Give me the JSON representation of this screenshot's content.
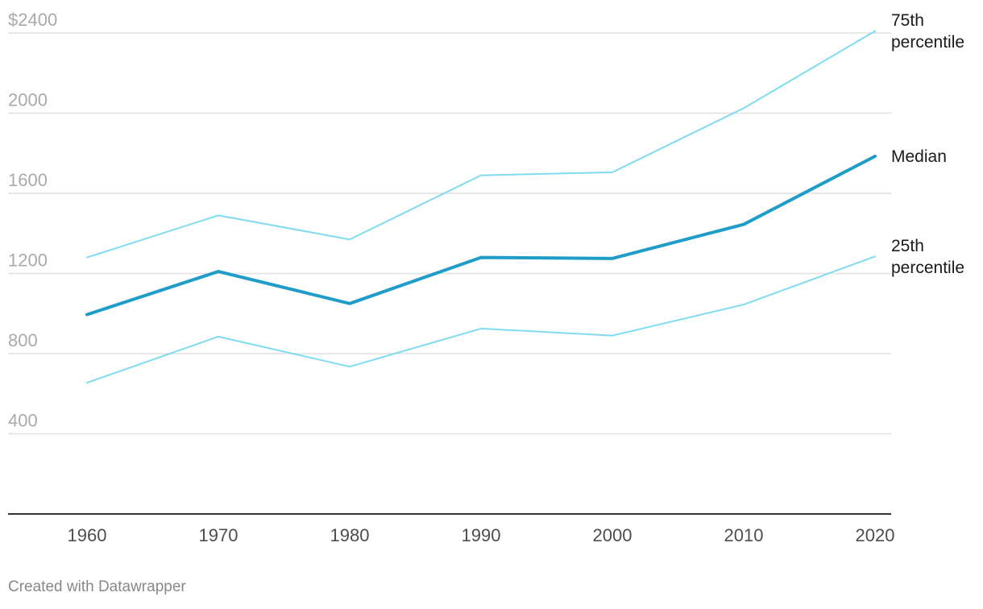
{
  "credit": "Created with Datawrapper",
  "colors": {
    "median": "#1f9dc8",
    "percentile": "#7fdcf0",
    "grid": "#e0e0e0",
    "baseline": "#333333"
  },
  "chart_data": {
    "type": "line",
    "x": [
      1960,
      1970,
      1980,
      1990,
      2000,
      2010,
      2020
    ],
    "x_tick_labels": [
      "1960",
      "1970",
      "1980",
      "1990",
      "2000",
      "2010",
      "2020"
    ],
    "y_tick_labels": [
      "$2400",
      "2000",
      "1600",
      "1200",
      "800",
      "400"
    ],
    "y_ticks": [
      2400,
      2000,
      1600,
      1200,
      800,
      400
    ],
    "ylim": [
      0,
      2400
    ],
    "xlim": [
      1960,
      2020
    ],
    "grid": true,
    "series": [
      {
        "name": "75th percentile",
        "label_lines": [
          "75th",
          "percentile"
        ],
        "style": "thin",
        "values": [
          1280,
          1490,
          1370,
          1690,
          1705,
          2025,
          2410
        ]
      },
      {
        "name": "Median",
        "label_lines": [
          "Median"
        ],
        "style": "thick",
        "values": [
          995,
          1210,
          1050,
          1280,
          1275,
          1445,
          1785
        ]
      },
      {
        "name": "25th percentile",
        "label_lines": [
          "25th",
          "percentile"
        ],
        "style": "thin",
        "values": [
          655,
          885,
          735,
          925,
          890,
          1045,
          1285
        ]
      }
    ]
  }
}
